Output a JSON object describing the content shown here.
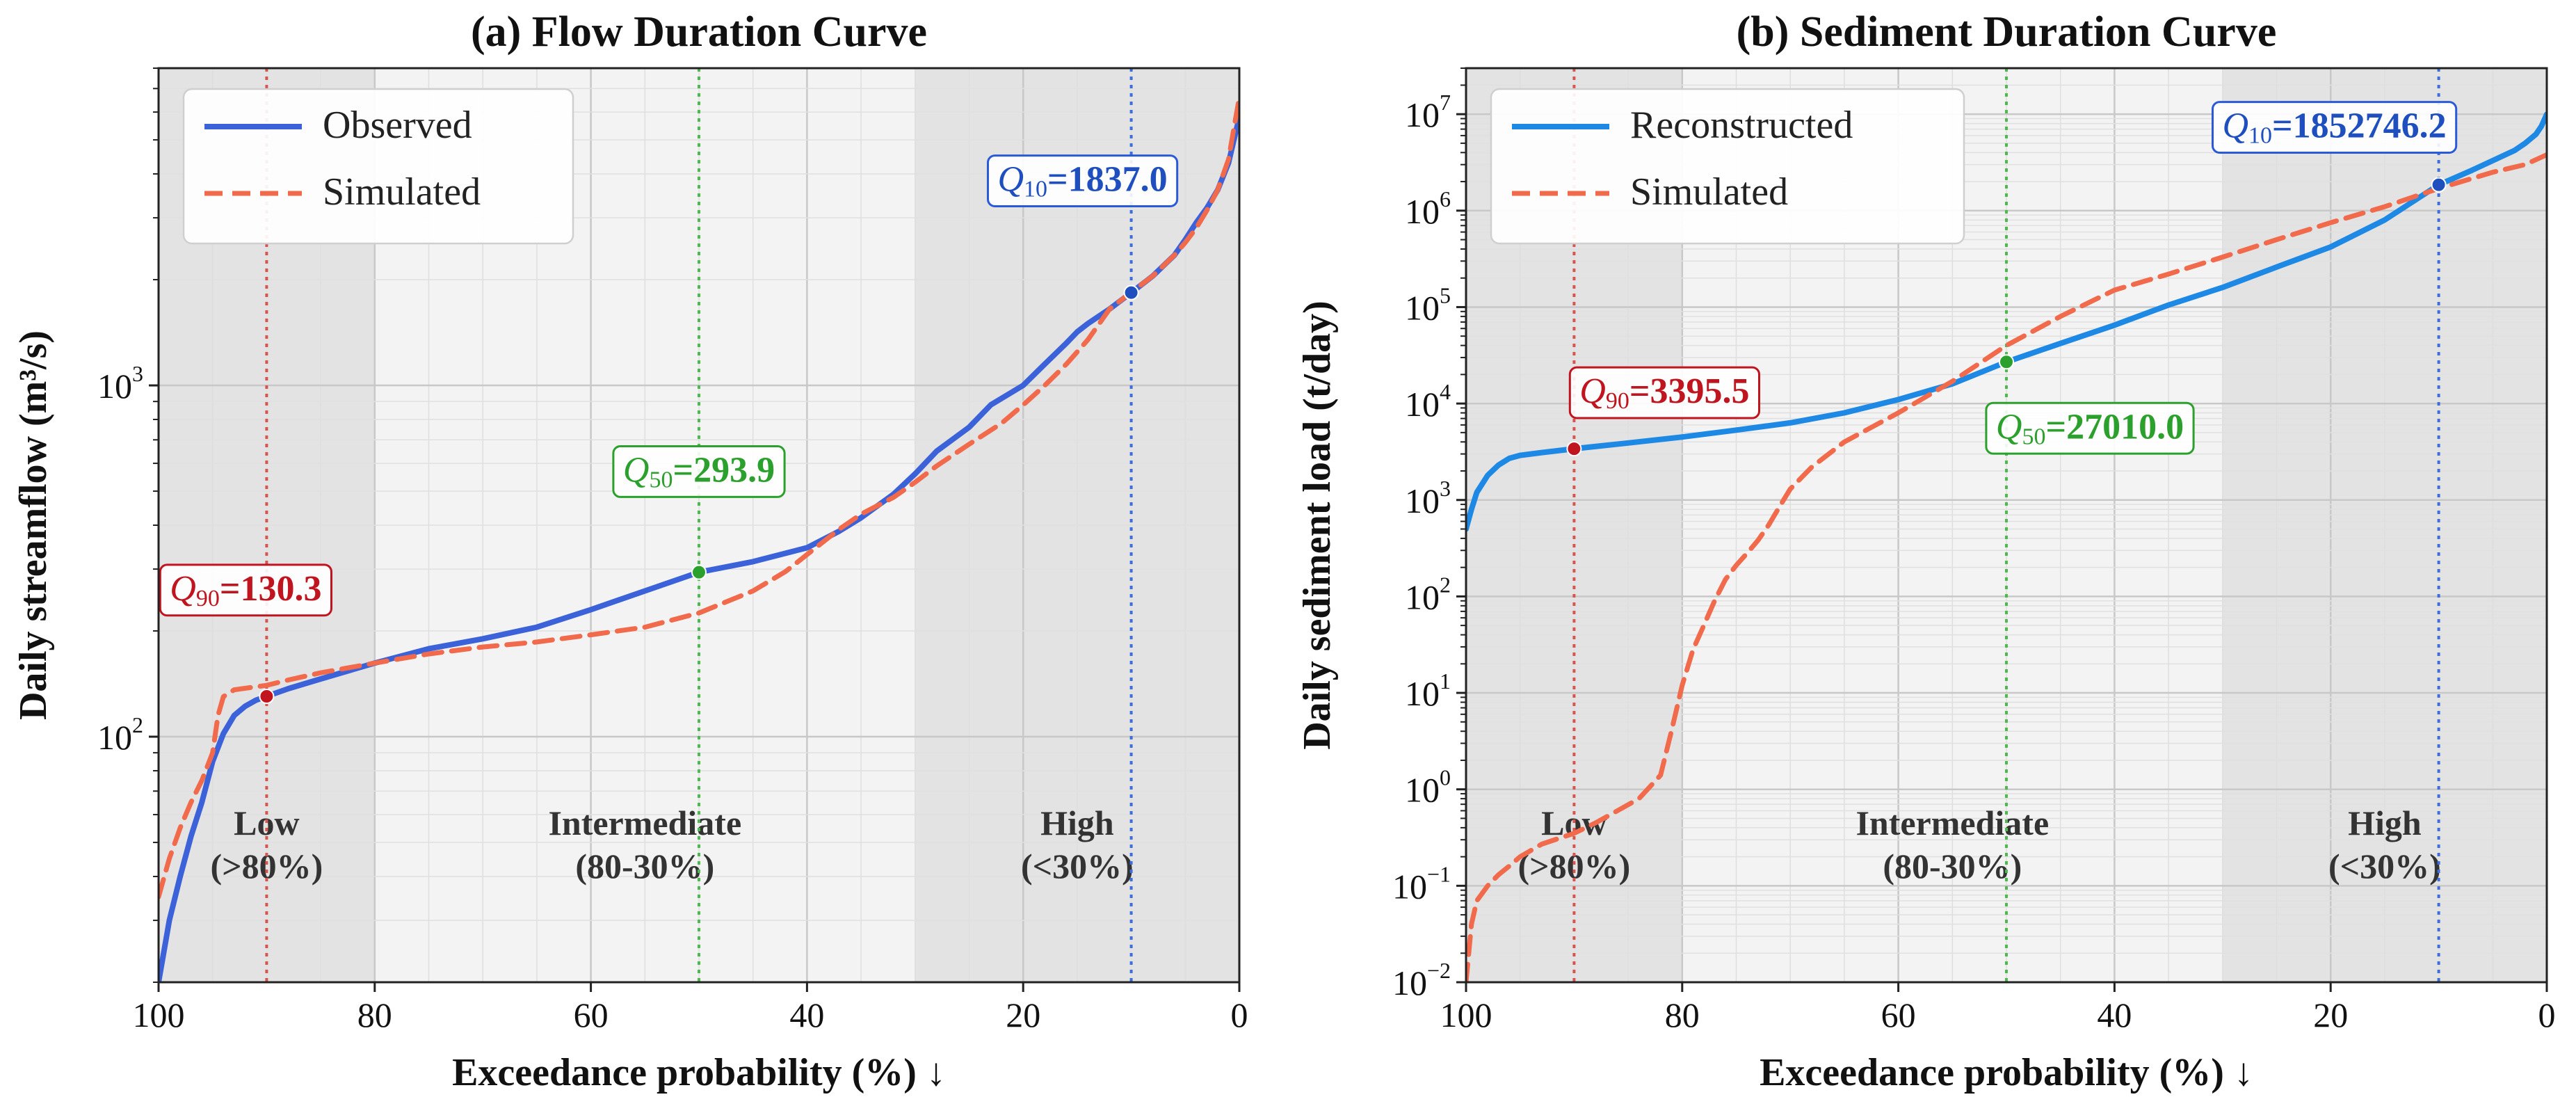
{
  "chart_data": [
    {
      "type": "line",
      "title": "(a) Flow Duration Curve",
      "xlabel": "Exceedance probability (%) ↓",
      "ylabel": "Daily streamflow (m³/s)",
      "xlim": [
        100,
        0
      ],
      "ylim": [
        20,
        8000
      ],
      "yscale": "log",
      "x_ticks": [
        "100",
        "80",
        "60",
        "40",
        "20",
        "0"
      ],
      "x_tick_values": [
        100,
        80,
        60,
        40,
        20,
        0
      ],
      "y_ticks": [
        {
          "base": "10",
          "exp": "2",
          "value": 100
        },
        {
          "base": "10",
          "exp": "3",
          "value": 1000
        }
      ],
      "grid": true,
      "legend_position": "top-left",
      "zones": [
        {
          "line1": "Low",
          "line2": "(>80%)",
          "range": [
            100,
            80
          ],
          "shade": "#e3e3e3"
        },
        {
          "line1": "Intermediate",
          "line2": "(80-30%)",
          "range": [
            80,
            30
          ],
          "shade": "#f3f3f3"
        },
        {
          "line1": "High",
          "line2": "(<30%)",
          "range": [
            30,
            0
          ],
          "shade": "#e3e3e3"
        }
      ],
      "vlines": [
        {
          "x": 90,
          "color": "#d9534f"
        },
        {
          "x": 50,
          "color": "#4cbb4c"
        },
        {
          "x": 10,
          "color": "#3b6fe0"
        }
      ],
      "series": [
        {
          "name": "Observed",
          "color": "#3b62d9",
          "dash": "solid",
          "x": [
            100,
            99,
            98,
            97,
            96,
            95,
            94,
            93,
            92,
            91,
            90,
            88,
            85,
            80,
            75,
            70,
            65,
            60,
            55,
            50,
            45,
            40,
            37,
            35,
            32,
            30,
            28,
            25,
            23,
            20,
            18,
            16,
            15,
            14,
            12,
            10,
            8,
            6,
            5,
            4,
            3,
            2,
            1,
            0.5,
            0
          ],
          "y": [
            20,
            30,
            40,
            52,
            65,
            85,
            102,
            115,
            122,
            127,
            130.3,
            137,
            146,
            162,
            178,
            190,
            205,
            230,
            260,
            293.9,
            315,
            345,
            385,
            420,
            490,
            560,
            650,
            760,
            880,
            1000,
            1150,
            1320,
            1420,
            1500,
            1650,
            1837,
            2050,
            2350,
            2600,
            2900,
            3200,
            3600,
            4300,
            5000,
            5800
          ]
        },
        {
          "name": "Simulated",
          "color": "#f06a4b",
          "dash": "dashed",
          "x": [
            100,
            99,
            98,
            97,
            96,
            95,
            94.5,
            94,
            93,
            90,
            88,
            85,
            80,
            75,
            70,
            65,
            60,
            55,
            50,
            45,
            42,
            40,
            37,
            35,
            32,
            30,
            28,
            25,
            22,
            20,
            18,
            16,
            14,
            12,
            10,
            8,
            6,
            5,
            4,
            3,
            2,
            1,
            0.5,
            0
          ],
          "y": [
            35,
            45,
            55,
            65,
            75,
            90,
            115,
            130,
            136,
            140,
            145,
            152,
            162,
            172,
            180,
            186,
            195,
            205,
            225,
            260,
            295,
            330,
            390,
            430,
            480,
            530,
            590,
            680,
            780,
            880,
            1000,
            1150,
            1350,
            1650,
            1840,
            2050,
            2350,
            2550,
            2800,
            3150,
            3600,
            4400,
            5400,
            6600
          ]
        }
      ],
      "points": [
        {
          "x": 90,
          "y": 130.3,
          "color": "#c0141f",
          "label_q": "Q",
          "label_sub": "90",
          "label_val": "=130.3",
          "box_color": "#c0141f"
        },
        {
          "x": 50,
          "y": 293.9,
          "color": "#2ca02c",
          "label_q": "Q",
          "label_sub": "50",
          "label_val": "=293.9",
          "box_color": "#2ca02c"
        },
        {
          "x": 10,
          "y": 1837.0,
          "color": "#1f4fbf",
          "label_q": "Q",
          "label_sub": "10",
          "label_val": "=1837.0",
          "box_color": "#2b5ad6"
        }
      ]
    },
    {
      "type": "line",
      "title": "(b) Sediment Duration Curve",
      "xlabel": "Exceedance probability (%) ↓",
      "ylabel": "Daily sediment load (t/day)",
      "xlim": [
        100,
        0
      ],
      "ylim": [
        0.01,
        30000000
      ],
      "yscale": "log",
      "x_ticks": [
        "100",
        "80",
        "60",
        "40",
        "20",
        "0"
      ],
      "x_tick_values": [
        100,
        80,
        60,
        40,
        20,
        0
      ],
      "y_ticks": [
        {
          "base": "10",
          "exp": "−2",
          "value": 0.01
        },
        {
          "base": "10",
          "exp": "−1",
          "value": 0.1
        },
        {
          "base": "10",
          "exp": "0",
          "value": 1
        },
        {
          "base": "10",
          "exp": "1",
          "value": 10
        },
        {
          "base": "10",
          "exp": "2",
          "value": 100
        },
        {
          "base": "10",
          "exp": "3",
          "value": 1000
        },
        {
          "base": "10",
          "exp": "4",
          "value": 10000
        },
        {
          "base": "10",
          "exp": "5",
          "value": 100000
        },
        {
          "base": "10",
          "exp": "6",
          "value": 1000000
        },
        {
          "base": "10",
          "exp": "7",
          "value": 10000000
        }
      ],
      "grid": true,
      "legend_position": "top-left",
      "zones": [
        {
          "line1": "Low",
          "line2": "(>80%)",
          "range": [
            100,
            80
          ],
          "shade": "#e3e3e3"
        },
        {
          "line1": "Intermediate",
          "line2": "(80-30%)",
          "range": [
            80,
            30
          ],
          "shade": "#f3f3f3"
        },
        {
          "line1": "High",
          "line2": "(<30%)",
          "range": [
            30,
            0
          ],
          "shade": "#e3e3e3"
        }
      ],
      "vlines": [
        {
          "x": 90,
          "color": "#d9534f"
        },
        {
          "x": 50,
          "color": "#4cbb4c"
        },
        {
          "x": 10,
          "color": "#3b6fe0"
        }
      ],
      "series": [
        {
          "name": "Reconstructed",
          "color": "#1e88e5",
          "dash": "solid",
          "x": [
            100,
            99.5,
            99,
            98,
            97,
            96,
            95,
            93,
            90,
            85,
            80,
            75,
            70,
            65,
            60,
            55,
            50,
            45,
            40,
            35,
            30,
            25,
            20,
            15,
            10,
            7,
            5,
            3,
            2,
            1,
            0.5,
            0
          ],
          "y": [
            500,
            800,
            1200,
            1800,
            2300,
            2700,
            2900,
            3100,
            3395.5,
            3900,
            4500,
            5300,
            6300,
            8000,
            11000,
            16000,
            27010,
            42000,
            65000,
            105000,
            160000,
            260000,
            420000,
            800000,
            1852746.2,
            2600000,
            3300000,
            4200000,
            5000000,
            6200000,
            7500000,
            10000000
          ]
        },
        {
          "name": "Simulated",
          "color": "#f06a4b",
          "dash": "dashed",
          "x": [
            100,
            99.5,
            99,
            98,
            97,
            96,
            95,
            93,
            90,
            88,
            86,
            84,
            82,
            81,
            80,
            79,
            78,
            77,
            76,
            75,
            74,
            73,
            72,
            71,
            70,
            68,
            65,
            60,
            55,
            50,
            45,
            40,
            35,
            30,
            25,
            20,
            15,
            10,
            5,
            2,
            0
          ],
          "y": [
            0.01,
            0.04,
            0.07,
            0.1,
            0.13,
            0.16,
            0.2,
            0.27,
            0.35,
            0.45,
            0.6,
            0.8,
            1.4,
            4,
            12,
            28,
            50,
            90,
            150,
            210,
            280,
            380,
            550,
            850,
            1300,
            2200,
            4000,
            8000,
            17000,
            40000,
            80000,
            150000,
            220000,
            330000,
            500000,
            750000,
            1100000,
            1700000,
            2500000,
            3000000,
            3800000
          ]
        }
      ],
      "points": [
        {
          "x": 90,
          "y": 3395.5,
          "color": "#c0141f",
          "label_q": "Q",
          "label_sub": "90",
          "label_val": "=3395.5",
          "box_color": "#c0141f"
        },
        {
          "x": 50,
          "y": 27010.0,
          "color": "#2ca02c",
          "label_q": "Q",
          "label_sub": "50",
          "label_val": "=27010.0",
          "box_color": "#2ca02c"
        },
        {
          "x": 10,
          "y": 1852746.2,
          "color": "#1f4fbf",
          "label_q": "Q",
          "label_sub": "10",
          "label_val": "=1852746.2",
          "box_color": "#2b5ad6"
        }
      ]
    }
  ]
}
